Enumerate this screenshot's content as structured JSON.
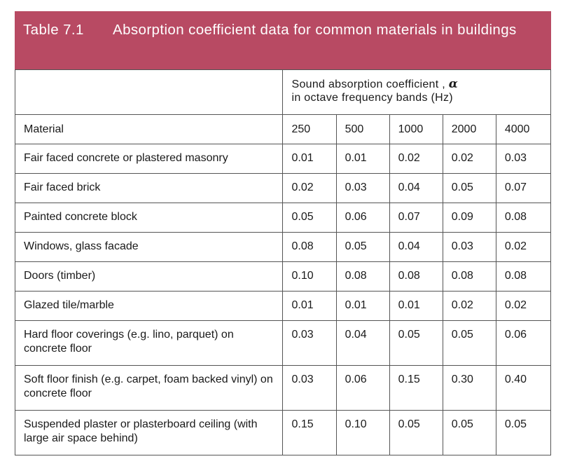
{
  "caption": {
    "number": "Table 7.1",
    "title": "Absorption coefficient data for common materials in buildings"
  },
  "header": {
    "line1": "Sound absorption coefficient ,",
    "symbol": "α",
    "line2": "in octave frequency bands (Hz)"
  },
  "columns": {
    "material": "Material",
    "frequencies": [
      "250",
      "500",
      "1000",
      "2000",
      "4000"
    ]
  },
  "rows": [
    {
      "material": "Fair faced concrete or plastered masonry",
      "values": [
        "0.01",
        "0.01",
        "0.02",
        "0.02",
        "0.03"
      ]
    },
    {
      "material": "Fair faced brick",
      "values": [
        "0.02",
        "0.03",
        "0.04",
        "0.05",
        "0.07"
      ]
    },
    {
      "material": "Painted concrete block",
      "values": [
        "0.05",
        "0.06",
        "0.07",
        "0.09",
        "0.08"
      ]
    },
    {
      "material": "Windows, glass facade",
      "values": [
        "0.08",
        "0.05",
        "0.04",
        "0.03",
        "0.02"
      ]
    },
    {
      "material": "Doors (timber)",
      "values": [
        "0.10",
        "0.08",
        "0.08",
        "0.08",
        "0.08"
      ]
    },
    {
      "material": "Glazed tile/marble",
      "values": [
        "0.01",
        "0.01",
        "0.01",
        "0.02",
        "0.02"
      ]
    },
    {
      "material": "Hard floor coverings (e.g. lino, parquet) on concrete floor",
      "values": [
        "0.03",
        "0.04",
        "0.05",
        "0.05",
        "0.06"
      ]
    },
    {
      "material": "Soft floor finish (e.g. carpet, foam backed vinyl) on concrete floor",
      "values": [
        "0.03",
        "0.06",
        "0.15",
        "0.30",
        "0.40"
      ]
    },
    {
      "material": "Suspended plaster or plasterboard ceiling (with large air space behind)",
      "values": [
        "0.15",
        "0.10",
        "0.05",
        "0.05",
        "0.05"
      ]
    }
  ],
  "colors": {
    "caption_background": "#b84a63",
    "caption_text": "#ffffff",
    "rule": "#555555"
  }
}
